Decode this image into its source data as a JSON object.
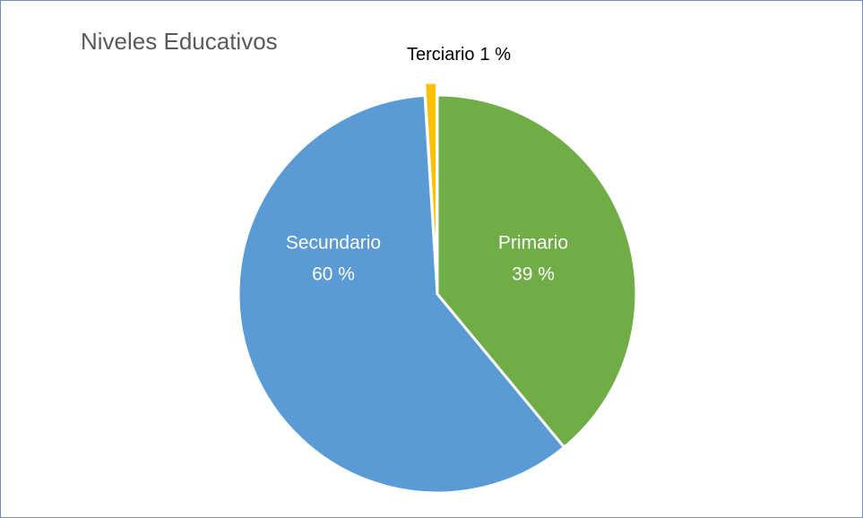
{
  "chart_data": {
    "type": "pie",
    "title": "Niveles Educativos",
    "categories": [
      "Primario",
      "Secundario",
      "Terciario"
    ],
    "values": [
      39,
      60,
      1
    ],
    "value_labels": [
      "39 %",
      "60 %",
      "1 %"
    ],
    "colors": [
      "#70ad47",
      "#5b9bd5",
      "#ffc000"
    ]
  }
}
